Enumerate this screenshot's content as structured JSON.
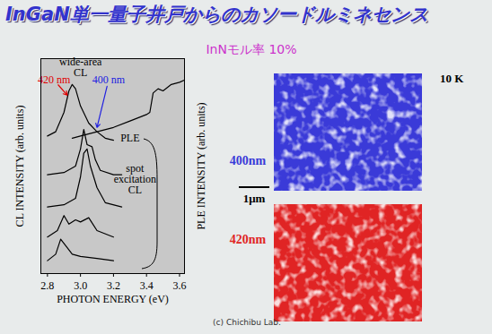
{
  "title": "InGaN単一量子井戸からのカソードルミネセンス",
  "subtitle": "InNモル率 10%",
  "chart_data": {
    "type": "line",
    "xlabel": "PHOTON ENERGY (eV)",
    "ylabel": "CL INTENSITY (arb. units)",
    "y2label": "PLE INTENSITY (arb. units)",
    "xlim": [
      2.76,
      3.63
    ],
    "xticks": [
      2.8,
      {
        "value": 3.0,
        "label": "3.0"
      },
      3.2,
      3.4,
      3.6
    ],
    "ylim": [
      0,
      10
    ],
    "tick_labels": "x",
    "color": "#000000",
    "series": [
      {
        "x": [
          2.8,
          2.85,
          2.9,
          2.93,
          2.95,
          2.97,
          3.0,
          3.05,
          3.1,
          3.15,
          3.2
        ],
        "values": [
          6.4,
          6.6,
          7.5,
          8.5,
          8.8,
          8.6,
          7.8,
          7.0,
          6.6,
          6.3,
          6.2
        ]
      },
      {
        "x": [
          2.95,
          3.0,
          3.1,
          3.2,
          3.3,
          3.4,
          3.42,
          3.44,
          3.47,
          3.5,
          3.55,
          3.6,
          3.63
        ],
        "values": [
          6.3,
          6.4,
          6.6,
          6.8,
          7.1,
          7.4,
          7.5,
          8.4,
          8.6,
          8.5,
          8.8,
          8.9,
          9.0
        ]
      },
      {
        "x": [
          2.8,
          2.9,
          2.97,
          3.0,
          3.02,
          3.04,
          3.07,
          3.09,
          3.12,
          3.2,
          3.25
        ],
        "values": [
          4.6,
          4.7,
          5.0,
          5.8,
          6.7,
          6.0,
          5.9,
          5.3,
          4.8,
          4.6,
          4.6
        ]
      },
      {
        "x": [
          2.8,
          2.9,
          2.97,
          3.0,
          3.02,
          3.04,
          3.06,
          3.1,
          3.15,
          3.25
        ],
        "values": [
          3.1,
          3.2,
          3.5,
          4.5,
          5.6,
          5.8,
          5.0,
          4.0,
          3.3,
          3.1
        ]
      },
      {
        "x": [
          2.8,
          2.86,
          2.9,
          2.93,
          2.97,
          3.0,
          3.05,
          3.1,
          3.2
        ],
        "values": [
          1.7,
          2.0,
          2.7,
          2.3,
          2.5,
          2.4,
          2.6,
          2.0,
          1.7
        ]
      },
      {
        "x": [
          2.8,
          2.85,
          2.88,
          2.92,
          2.95,
          3.0,
          3.1,
          3.2
        ],
        "values": [
          0.6,
          0.9,
          1.6,
          1.2,
          0.9,
          0.8,
          0.7,
          0.6
        ]
      }
    ],
    "annotations": [
      {
        "text": "wide-area CL",
        "x": 3.0,
        "y": 9.6,
        "color": "#000000"
      },
      {
        "text": "420 nm",
        "x": 2.84,
        "y": 9.0,
        "color": "#e00000",
        "target": [
          2.92,
          8.3
        ]
      },
      {
        "text": "400 nm",
        "x": 3.17,
        "y": 9.0,
        "color": "#2020e0",
        "target": [
          3.1,
          6.8
        ]
      },
      {
        "text": "PLE",
        "x": 3.3,
        "y": 6.3,
        "color": "#000000"
      },
      {
        "text": "spot excitation CL",
        "x": 3.33,
        "y": 4.4,
        "color": "#000000"
      }
    ]
  },
  "images": {
    "temperature": "10 K",
    "scale_bar": "1μm",
    "panels": [
      {
        "label": "400nm",
        "color": "#3a3ad8"
      },
      {
        "label": "420nm",
        "color": "#e02424"
      }
    ]
  },
  "credit": "(c) Chichibu Lab."
}
